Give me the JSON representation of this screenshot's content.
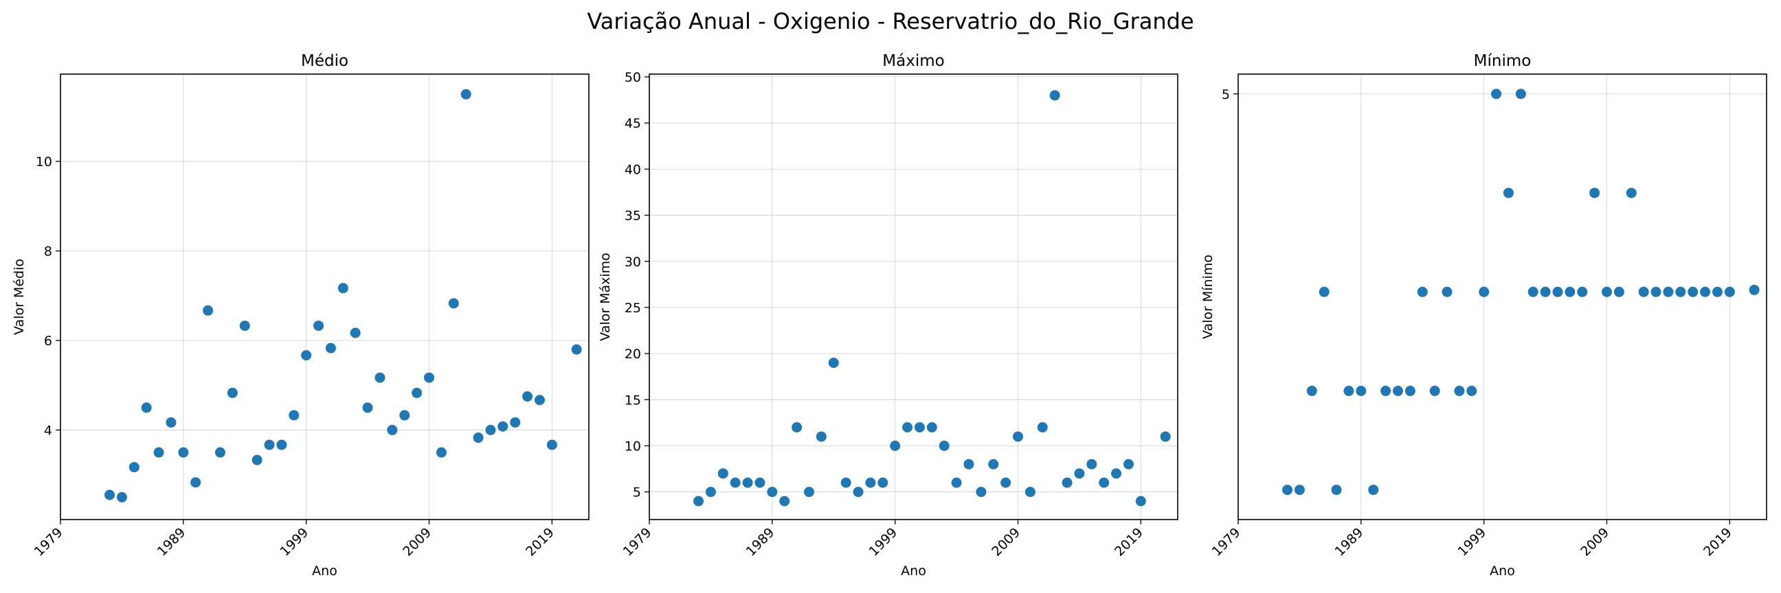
{
  "suptitle": "Variação Anual - Oxigenio - Reservatrio_do_Rio_Grande",
  "colors": {
    "marker": "#1f77b4",
    "grid": "#b0b0b0"
  },
  "chart_data": [
    {
      "type": "scatter",
      "title": "Médio",
      "xlabel": "Ano",
      "ylabel": "Valor Médio",
      "xlim": [
        1979,
        2022
      ],
      "ylim": [
        2.0,
        11.95
      ],
      "xticks": [
        1979,
        1989,
        1999,
        2009,
        2019
      ],
      "yticks": [
        4,
        6,
        8,
        10
      ],
      "grid": true,
      "x": [
        1983,
        1984,
        1985,
        1986,
        1987,
        1988,
        1989,
        1990,
        1991,
        1992,
        1993,
        1994,
        1995,
        1996,
        1997,
        1998,
        1999,
        2000,
        2001,
        2002,
        2003,
        2004,
        2005,
        2006,
        2007,
        2008,
        2009,
        2010,
        2011,
        2012,
        2013,
        2014,
        2015,
        2016,
        2017,
        2018,
        2019,
        2021
      ],
      "y": [
        2.55,
        2.5,
        3.17,
        4.5,
        3.5,
        4.17,
        3.5,
        2.83,
        6.67,
        3.5,
        4.83,
        6.33,
        3.33,
        3.67,
        3.67,
        4.33,
        5.67,
        6.33,
        5.83,
        7.17,
        6.17,
        4.5,
        5.17,
        4.0,
        4.33,
        4.83,
        5.17,
        3.5,
        6.83,
        11.5,
        3.83,
        4.0,
        4.08,
        4.17,
        4.75,
        4.67,
        3.67,
        5.8
      ]
    },
    {
      "type": "scatter",
      "title": "Máximo",
      "xlabel": "Ano",
      "ylabel": "Valor Máximo",
      "xlim": [
        1979,
        2022
      ],
      "ylim": [
        2.0,
        50.3
      ],
      "xticks": [
        1979,
        1989,
        1999,
        2009,
        2019
      ],
      "yticks": [
        5,
        10,
        15,
        20,
        25,
        30,
        35,
        40,
        45,
        50
      ],
      "grid": true,
      "x": [
        1983,
        1984,
        1985,
        1986,
        1987,
        1988,
        1989,
        1990,
        1991,
        1992,
        1993,
        1994,
        1995,
        1996,
        1997,
        1998,
        1999,
        2000,
        2001,
        2002,
        2003,
        2004,
        2005,
        2006,
        2007,
        2008,
        2009,
        2010,
        2011,
        2012,
        2013,
        2014,
        2015,
        2016,
        2017,
        2018,
        2019,
        2021
      ],
      "y": [
        4,
        5,
        7,
        6,
        6,
        6,
        5,
        4,
        12,
        5,
        11,
        19,
        6,
        5,
        6,
        6,
        10,
        12,
        12,
        12,
        10,
        6,
        8,
        5,
        8,
        6,
        11,
        5,
        12,
        48,
        6,
        7,
        8,
        6,
        7,
        8,
        4,
        11
      ]
    },
    {
      "type": "scatter",
      "title": "Mínimo",
      "xlabel": "Ano",
      "ylabel": "Valor Mínimo",
      "xlim": [
        1979,
        2022
      ],
      "ylim": [
        0.7,
        5.2
      ],
      "xticks": [
        1979,
        1989,
        1999,
        2009,
        2019
      ],
      "yticks": [
        5
      ],
      "grid": true,
      "x": [
        1983,
        1984,
        1985,
        1986,
        1987,
        1988,
        1989,
        1990,
        1991,
        1992,
        1993,
        1994,
        1995,
        1996,
        1997,
        1998,
        1999,
        2000,
        2001,
        2002,
        2003,
        2004,
        2005,
        2006,
        2007,
        2008,
        2009,
        2010,
        2011,
        2012,
        2013,
        2014,
        2015,
        2016,
        2017,
        2018,
        2019,
        2021
      ],
      "y": [
        1,
        1,
        2,
        3,
        1,
        2,
        2,
        1,
        2,
        2,
        2,
        3,
        2,
        3,
        2,
        2,
        3,
        5,
        4,
        5,
        3,
        3,
        3,
        3,
        3,
        4,
        3,
        3,
        4,
        3,
        3,
        3,
        3,
        3,
        3,
        3,
        3,
        3.02
      ]
    }
  ]
}
